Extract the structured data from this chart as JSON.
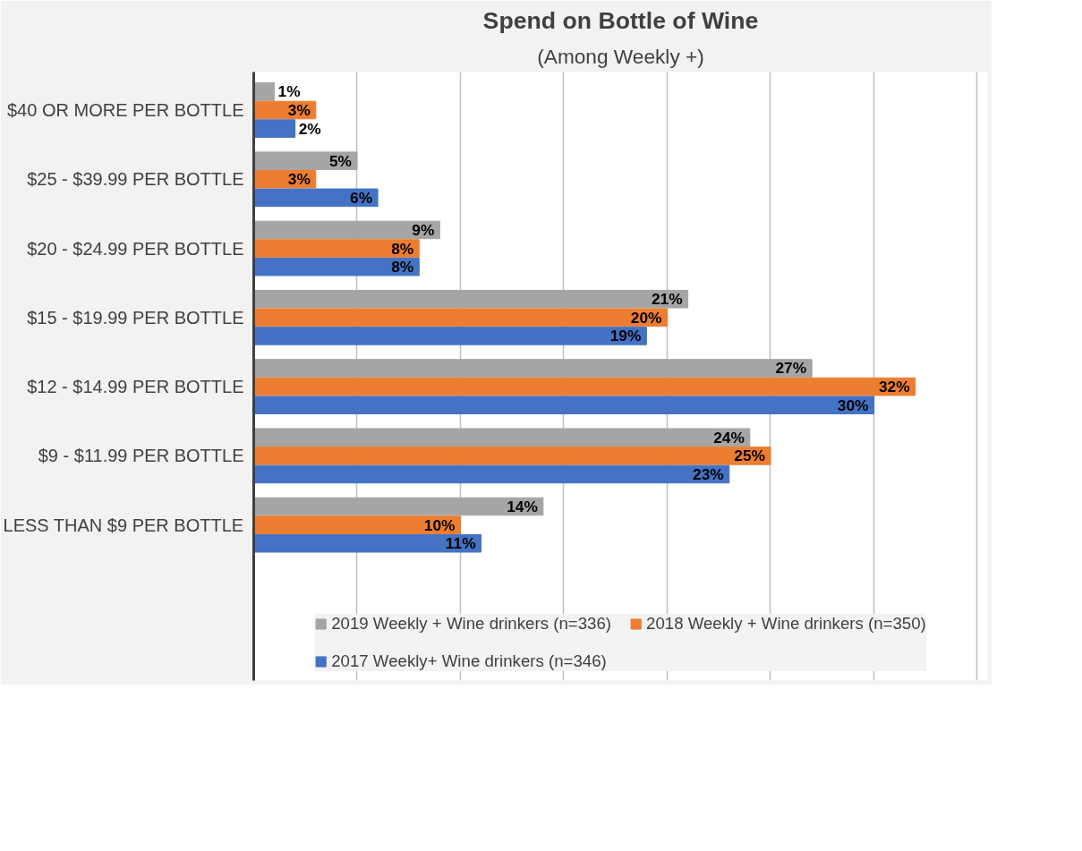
{
  "chart_data": {
    "type": "bar",
    "orientation": "horizontal",
    "title": "Spend on Bottle of Wine",
    "subtitle": "(Among Weekly +)",
    "categories": [
      "$40 OR MORE PER BOTTLE",
      "$25 - $39.99 PER BOTTLE",
      "$20 - $24.99 PER BOTTLE",
      "$15 - $19.99 PER BOTTLE",
      "$12 - $14.99 PER BOTTLE",
      "$9 - $11.99 PER BOTTLE",
      "LESS THAN $9 PER BOTTLE"
    ],
    "series": [
      {
        "name": "2019 Weekly + Wine drinkers (n=336)",
        "color": "#a5a5a5",
        "values": [
          1,
          5,
          9,
          21,
          27,
          24,
          14
        ],
        "value_labels": [
          "1%",
          "5%",
          "9%",
          "21%",
          "27%",
          "24%",
          "14%"
        ]
      },
      {
        "name": "2018 Weekly + Wine drinkers (n=350)",
        "color": "#ed7d31",
        "values": [
          3,
          3,
          8,
          20,
          32,
          25,
          10
        ],
        "value_labels": [
          "3%",
          "3%",
          "8%",
          "20%",
          "32%",
          "25%",
          "10%"
        ]
      },
      {
        "name": "2017 Weekly+ Wine drinkers (n=346)",
        "color": "#4472c4",
        "values": [
          2,
          6,
          8,
          19,
          30,
          23,
          11
        ],
        "value_labels": [
          "2%",
          "6%",
          "8%",
          "19%",
          "30%",
          "23%",
          "11%"
        ]
      }
    ],
    "xlim": [
      0,
      35.5
    ],
    "xticks": [
      {
        "value": 0,
        "label": null
      },
      {
        "value": 5,
        "label": null
      },
      {
        "value": 10,
        "label": null
      },
      {
        "value": 15,
        "label": null
      },
      {
        "value": 20,
        "label": null
      },
      {
        "value": 25,
        "label": null
      },
      {
        "value": 30,
        "label": null
      },
      {
        "value": 35,
        "label": null
      }
    ],
    "grid": "x",
    "legend": "bottom",
    "tick_labels": "y"
  }
}
